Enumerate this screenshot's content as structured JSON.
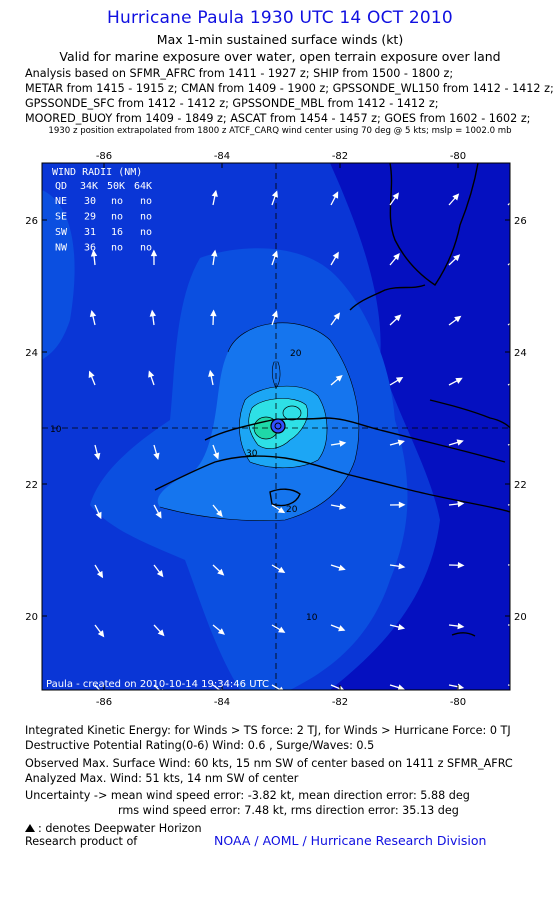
{
  "header": {
    "title": "Hurricane Paula 1930 UTC 14 OCT 2010",
    "subtitle": "Max 1-min sustained surface winds (kt)",
    "validity": "Valid for marine exposure over water, open terrain exposure over land"
  },
  "analysis_sources": [
    "Analysis based on SFMR_AFRC from 1411 - 1927 z; SHIP from 1500 - 1800 z;",
    "METAR from 1415 - 1915 z; CMAN from 1409 - 1900 z; GPSSONDE_WL150 from 1412 - 1412 z;",
    "GPSSONDE_SFC from 1412 - 1412 z; GPSSONDE_MBL from 1412 - 1412 z;",
    "MOORED_BUOY from 1409 - 1849 z; ASCAT from 1454 - 1457 z; GOES from 1602 - 1602 z;"
  ],
  "position_note": "1930 z position extrapolated from 1800 z ATCF_CARQ wind center using 70 deg @ 5 kts; mslp = 1002.0 mb",
  "map": {
    "lon_ticks": [
      "-86",
      "-84",
      "-82",
      "-80"
    ],
    "lat_ticks": [
      "26",
      "24",
      "22",
      "20"
    ],
    "lon_min": -87.0,
    "lon_max": -79.8,
    "lat_min": 18.8,
    "lat_max": 26.8,
    "center": {
      "lon": -82.95,
      "lat": 22.85
    },
    "contour_labels": [
      "20",
      "30",
      "20",
      "10",
      "10"
    ],
    "colors": {
      "sea_blue": "#0a36d6",
      "light_blue": "#1ca6f5",
      "deep_blue": "#0510c0",
      "medium_blue": "#0b4fe0",
      "green": "#1fd8a8"
    },
    "wind_radii": {
      "title": "WIND RADII (NM)",
      "header": [
        "QD",
        "34K",
        "50K",
        "64K"
      ],
      "rows": [
        [
          "NE",
          "30",
          "no",
          "no"
        ],
        [
          "SE",
          "29",
          "no",
          "no"
        ],
        [
          "SW",
          "31",
          "16",
          "no"
        ],
        [
          "NW",
          "36",
          "no",
          "no"
        ]
      ]
    },
    "footer_label": "Paula - created on 2010-10-14 19:34:46 UTC"
  },
  "footer": {
    "ike": "Integrated Kinetic Energy: for Winds > TS force: 2 TJ, for Winds > Hurricane Force: 0 TJ",
    "dpr": "Destructive Potential Rating(0-6) Wind: 0.6 , Surge/Waves: 0.5",
    "observed_max": "Observed Max. Surface Wind: 60 kts, 15 nm SW of center based on 1411 z SFMR_AFRC",
    "analyzed_max": "Analyzed Max. Wind: 51 kts, 14 nm SW of center",
    "uncertainty": "Uncertainty -> mean wind speed error: -3.82 kt, mean direction error: 5.88 deg",
    "rms": "rms wind speed error: 7.48 kt, rms direction error: 35.13 deg",
    "deepwater": ": denotes Deepwater Horizon",
    "research_product": "Research product of",
    "org": "NOAA / AOML / Hurricane Research Division"
  }
}
